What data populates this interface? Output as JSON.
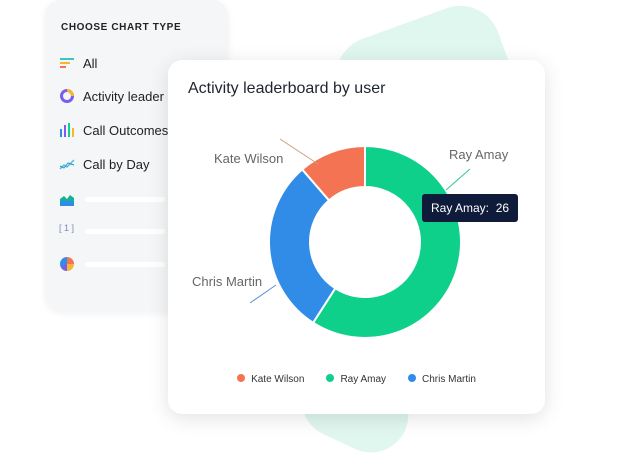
{
  "sidebar": {
    "heading": "CHOOSE CHART TYPE",
    "items": [
      {
        "label": "All",
        "icon": "filter-lines-icon"
      },
      {
        "label": "Activity leader",
        "icon": "donut-icon"
      },
      {
        "label": "Call Outcomes",
        "icon": "bar-chart-icon"
      },
      {
        "label": "Call by Day",
        "icon": "line-chart-icon"
      },
      {
        "label": "",
        "icon": "area-chart-icon"
      },
      {
        "label": "",
        "icon": "number-icon"
      },
      {
        "label": "",
        "icon": "pie-icon"
      }
    ]
  },
  "chart_data": {
    "type": "pie",
    "title": "Activity leaderboard by user",
    "donut": true,
    "categories": [
      "Kate Wilson",
      "Ray Amay",
      "Chris Martin"
    ],
    "values": [
      5,
      26,
      13
    ],
    "colors": [
      "#f47352",
      "#0fd08b",
      "#318ce7"
    ],
    "legend": "bottom",
    "tooltip": {
      "label": "Ray Amay:",
      "value": "26"
    }
  }
}
